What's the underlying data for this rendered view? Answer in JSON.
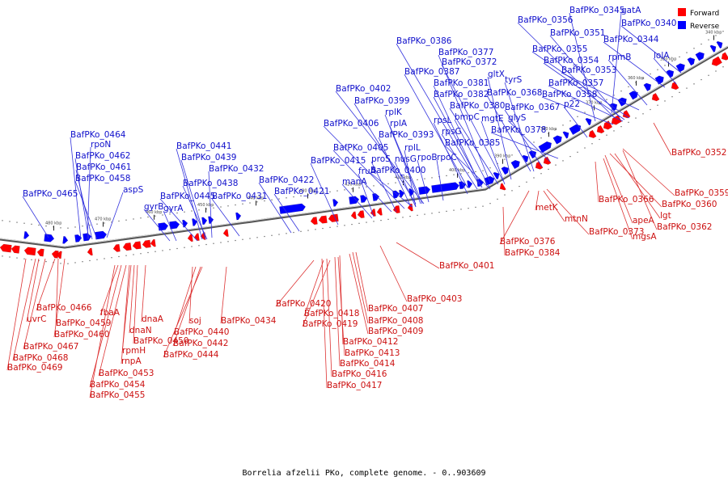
{
  "caption": "Borrelia afzelii PKo, complete genome. - 0..903609",
  "colors": {
    "forward": "#ff0000",
    "reverse": "#0000ff",
    "backbone": "#888888"
  },
  "legend": [
    {
      "label": "Forward",
      "color": "#ff0000"
    },
    {
      "label": "Reverse",
      "color": "#0000ff"
    }
  ],
  "ticks": [
    "480 kbp",
    "470 kbp",
    "460 kbp",
    "450 kbp",
    "440 kbp",
    "430 kbp",
    "420 kbp",
    "410 kbp",
    "400 kbp",
    "390 kbp",
    "380 kbp",
    "370 kbp",
    "360 kbp",
    "350 kbp",
    "340 kbp"
  ],
  "reverse_labels": [
    "BafPKo_0345",
    "gatA",
    "BafPKo_0356",
    "BafPKo_0340",
    "BafPKo_0351",
    "BafPKo_0344",
    "BafPKo_0355",
    "rpmB",
    "lolA",
    "BafPKo_0354",
    "BafPKo_0353",
    "BafPKo_0357",
    "BafPKo_0358",
    "p22",
    "BafPKo_0386",
    "BafPKo_0377",
    "BafPKo_0372",
    "BafPKo_0387",
    "gltX",
    "BafPKo_0381",
    "tyrS",
    "BafPKo_0382",
    "BafPKo_0368",
    "BafPKo_0380",
    "BafPKo_0367",
    "bmpC",
    "mgtE",
    "glyS",
    "rpsL",
    "rpsG",
    "BafPKo_0378",
    "BafPKo_0385",
    "BafPKo_0402",
    "BafPKo_0399",
    "rplK",
    "rplA",
    "BafPKo_0406",
    "BafPKo_0393",
    "rplL",
    "BafPKo_0405",
    "nusG",
    "rpoB",
    "rpoC",
    "proS",
    "BafPKo_0415",
    "fruA",
    "BafPKo_0400",
    "manA",
    "BafPKo_0422",
    "BafPKo_0421",
    "BafPKo_0441",
    "BafPKo_0439",
    "BafPKo_0432",
    "BafPKo_0438",
    "BafPKo_0445",
    "BafPKo_0431",
    "gyrB",
    "gyrA",
    "BafPKo_0464",
    "rpoN",
    "BafPKo_0462",
    "BafPKo_0461",
    "BafPKo_0458",
    "aspS",
    "BafPKo_0465"
  ],
  "forward_labels": [
    "BafPKo_0352",
    "BafPKo_0359",
    "BafPKo_0366",
    "BafPKo_0360",
    "lgt",
    "apeA",
    "BafPKo_0362",
    "mgsA",
    "BafPKo_0373",
    "mtnN",
    "metK",
    "BafPKo_0376",
    "BafPKo_0384",
    "BafPKo_0401",
    "BafPKo_0403",
    "BafPKo_0420",
    "BafPKo_0407",
    "BafPKo_0418",
    "BafPKo_0408",
    "BafPKo_0419",
    "BafPKo_0409",
    "BafPKo_0412",
    "BafPKo_0413",
    "BafPKo_0414",
    "BafPKo_0416",
    "BafPKo_0417",
    "BafPKo_0434",
    "soj",
    "BafPKo_0440",
    "BafPKo_0442",
    "BafPKo_0444",
    "dnaA",
    "fbaA",
    "dnaN",
    "BafPKo_0450",
    "rpmH",
    "rnpA",
    "BafPKo_0453",
    "BafPKo_0454",
    "BafPKo_0455",
    "BafPKo_0466",
    "uvrC",
    "BafPKo_0459",
    "BafPKo_0460",
    "BafPKo_0467",
    "BafPKo_0468",
    "BafPKo_0469"
  ]
}
